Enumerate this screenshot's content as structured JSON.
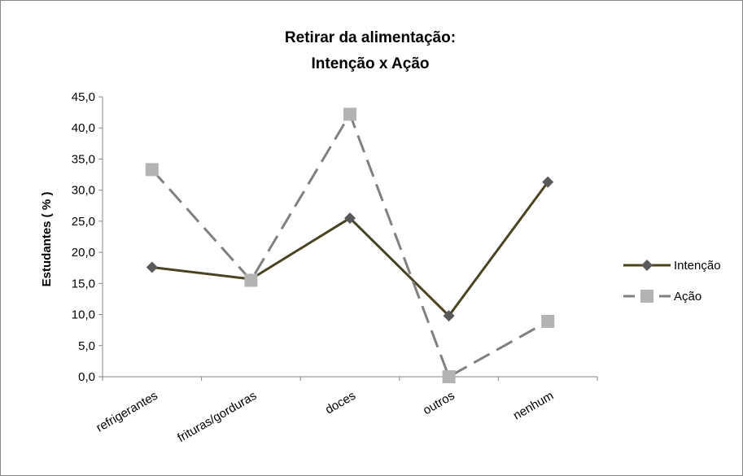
{
  "chart_data": {
    "type": "line",
    "title_lines": [
      "Retirar da alimentação:",
      "Intenção x Ação"
    ],
    "ylabel": "Estudantes ( % )",
    "xlabel": "",
    "categories": [
      "refrigerantes",
      "frituras/gorduras",
      "doces",
      "outros",
      "nenhum"
    ],
    "ylim": [
      0,
      45
    ],
    "yticks": [
      "0,0",
      "5,0",
      "10,0",
      "15,0",
      "20,0",
      "25,0",
      "30,0",
      "35,0",
      "40,0",
      "45,0"
    ],
    "grid": false,
    "legend_position": "right",
    "series": [
      {
        "name": "Intenção",
        "values": [
          17.6,
          15.7,
          25.5,
          9.8,
          31.3
        ],
        "color": "#4a4321",
        "dash": "solid",
        "marker": "diamond",
        "marker_color": "#595959"
      },
      {
        "name": "Ação",
        "values": [
          33.3,
          15.5,
          42.2,
          0.0,
          8.9
        ],
        "color": "#808080",
        "dash": "dashed",
        "marker": "square",
        "marker_color": "#b3b3b3"
      }
    ]
  }
}
